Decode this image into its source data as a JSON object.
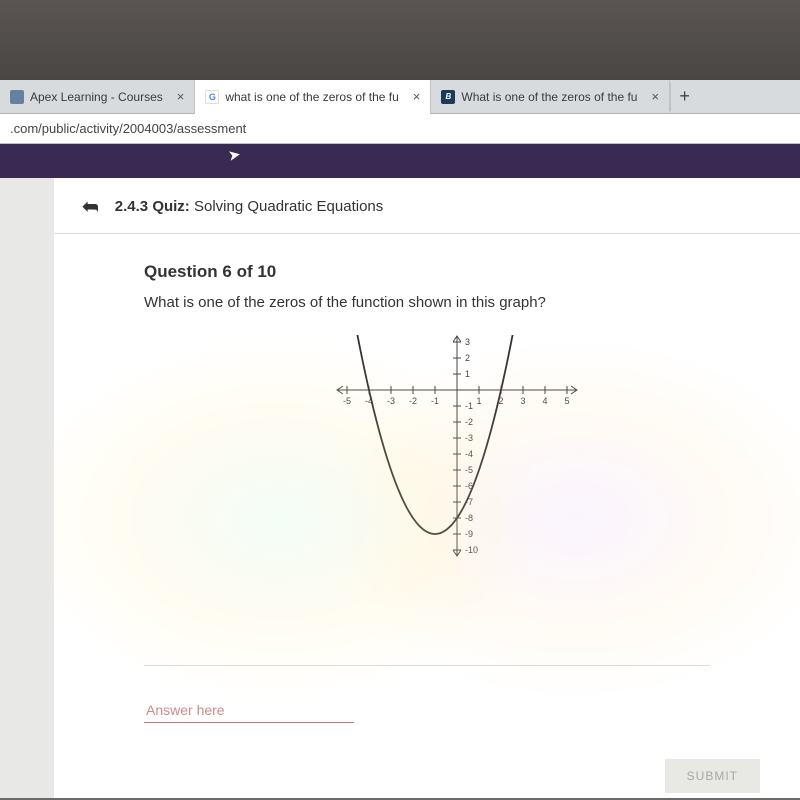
{
  "tabs": [
    {
      "title": "Apex Learning - Courses",
      "favicon": "apex",
      "active": false
    },
    {
      "title": "what is one of the zeros of the fu",
      "favicon": "google",
      "active": true,
      "favicon_letter": "G"
    },
    {
      "title": "What is one of the zeros of the fu",
      "favicon": "br",
      "active": false,
      "favicon_letter": "B"
    }
  ],
  "url": ".com/public/activity/2004003/assessment",
  "quiz": {
    "number": "2.4.3",
    "label_quiz": "Quiz:",
    "label_topic": "Solving Quadratic Equations"
  },
  "question": {
    "counter": "Question 6 of 10",
    "text": "What is one of the zeros of the function shown in this graph?",
    "answer_placeholder": "Answer here"
  },
  "submit_label": "SUBMIT",
  "graph": {
    "type": "parabola",
    "xlim": [
      -5,
      5
    ],
    "ylim_top": 3,
    "ylim_bottom": -10,
    "x_ticks": [
      -5,
      -4,
      -3,
      -2,
      -1,
      1,
      2,
      3,
      4,
      5
    ],
    "y_ticks_pos": [
      3,
      2,
      1
    ],
    "y_ticks_neg": [
      -1,
      -2,
      -3,
      -4,
      -5,
      -6,
      -7,
      -8,
      -9,
      -10
    ],
    "x_tick_label_fontsize": 9,
    "y_tick_label_fontsize": 9,
    "axis_color": "#444444",
    "curve_color": "#333333",
    "curve_width": 1.8,
    "tick_len": 4,
    "zeros": [
      -4,
      2
    ],
    "vertex": [
      -1,
      -9
    ],
    "coef_a": 1
  },
  "colors": {
    "tab_bg": "#d8dbde",
    "tab_active_bg": "#ffffff",
    "purple_bar": "#382a52",
    "page_bg": "#ffffff",
    "gutter_bg": "#e8e8e6",
    "answer_underline": "#c77",
    "submit_bg": "#e8e8e4",
    "submit_text": "#a8a8a0"
  }
}
